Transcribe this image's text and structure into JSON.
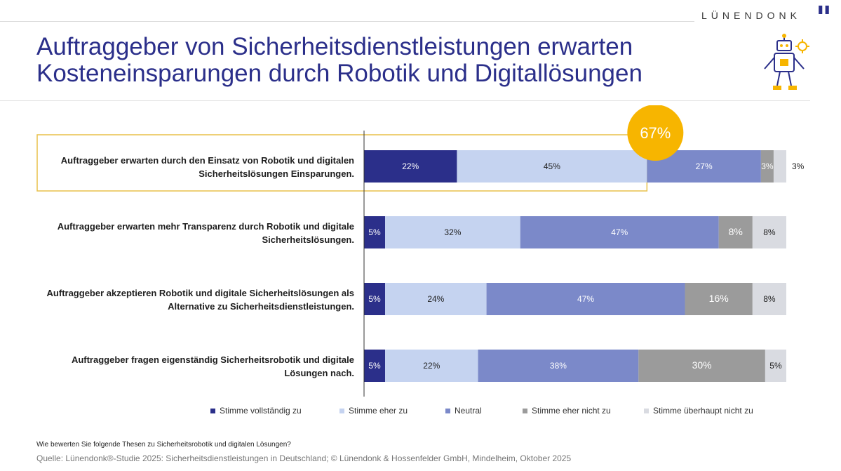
{
  "header": {
    "brand": "LÜNENDONK",
    "title_line1": "Auftraggeber von Sicherheitsdienstleistungen erwarten",
    "title_line2": "Kosteneinsparungen durch Robotik und Digitallösungen"
  },
  "chart_data": {
    "type": "bar",
    "orientation": "horizontal",
    "stacked": true,
    "categories": [
      [
        "Auftraggeber erwarten durch den Einsatz von Robotik und digitalen",
        "Sicherheitslösungen Einsparungen."
      ],
      [
        "Auftraggeber erwarten mehr Transparenz durch Robotik und digitale",
        "Sicherheitslösungen."
      ],
      [
        "Auftraggeber akzeptieren Robotik und digitale Sicherheitslösungen als",
        "Alternative zu Sicherheitsdienstleistungen."
      ],
      [
        "Auftraggeber fragen eigenständig Sicherheitsrobotik und digitale",
        "Lösungen nach."
      ]
    ],
    "series": [
      {
        "name": "Stimme vollständig zu",
        "color": "#2b2f8a",
        "label_color": "#ffffff",
        "values": [
          22,
          5,
          5,
          5
        ]
      },
      {
        "name": "Stimme eher zu",
        "color": "#c5d3f0",
        "label_color": "#222222",
        "values": [
          45,
          32,
          24,
          22
        ]
      },
      {
        "name": "Neutral",
        "color": "#7b89c9",
        "label_color": "#ffffff",
        "values": [
          27,
          47,
          47,
          38
        ]
      },
      {
        "name": "Stimme eher nicht zu",
        "color": "#9b9b9b",
        "label_color": "#ffffff",
        "values": [
          3,
          8,
          16,
          30
        ]
      },
      {
        "name": "Stimme überhaupt nicht zu",
        "color": "#d9dbe1",
        "label_color": "#222222",
        "values": [
          3,
          8,
          8,
          5
        ]
      }
    ],
    "xlim": [
      0,
      100
    ],
    "legend": "bottom",
    "highlight": {
      "row": 0,
      "label": "67%",
      "color": "#f7b500"
    }
  },
  "footer": {
    "question": "Wie bewerten Sie folgende Thesen zu Sicherheitsrobotik und digitalen Lösungen?",
    "source": "Quelle: Lünendonk®-Studie 2025: Sicherheitsdienstleistungen in Deutschland; © Lünendonk & Hossenfelder GmbH, Mindelheim, Oktober 2025"
  },
  "icons": {
    "logo": "quote-mark-icon",
    "illustration": "robot-icon"
  }
}
